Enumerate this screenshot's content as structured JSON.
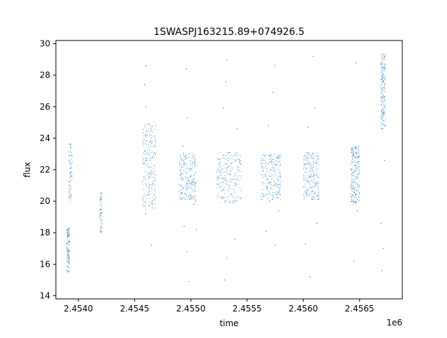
{
  "chart_data": {
    "type": "scatter",
    "title": "1SWASPJ163215.89+074926.5",
    "xlabel": "time",
    "ylabel": "flux",
    "x_offset_label": "1e6",
    "xlim": [
      2.4538,
      2.45688
    ],
    "ylim": [
      13.8,
      30.2
    ],
    "xticks": [
      2.454,
      2.4545,
      2.455,
      2.4555,
      2.456,
      2.4565
    ],
    "xtick_labels": [
      "2.4540",
      "2.4545",
      "2.4550",
      "2.4555",
      "2.4560",
      "2.4565"
    ],
    "yticks": [
      14,
      16,
      18,
      20,
      22,
      24,
      26,
      28,
      30
    ],
    "ytick_labels": [
      "14",
      "16",
      "18",
      "20",
      "22",
      "24",
      "26",
      "28",
      "30"
    ],
    "grid": false,
    "legend": "none",
    "marker_color": "#1f77b4",
    "series": [
      {
        "values": [
          {
            "x": 2.4539,
            "y": 15.6
          },
          {
            "x": 2.4539,
            "y": 16.2
          },
          {
            "x": 2.45391,
            "y": 16.8
          },
          {
            "x": 2.4539,
            "y": 17.3
          },
          {
            "x": 2.45391,
            "y": 17.8
          },
          {
            "x": 2.4539,
            "y": 18.2
          },
          {
            "x": 2.45392,
            "y": 20.3
          },
          {
            "x": 2.45392,
            "y": 21.2
          },
          {
            "x": 2.45393,
            "y": 22.1
          },
          {
            "x": 2.45392,
            "y": 22.9
          },
          {
            "x": 2.45393,
            "y": 23.6
          },
          {
            "x": 2.4542,
            "y": 18.1
          },
          {
            "x": 2.4542,
            "y": 19.5
          },
          {
            "x": 2.4542,
            "y": 20.5
          },
          {
            "x": 2.4546,
            "y": 19.2
          },
          {
            "x": 2.45462,
            "y": 20.4
          },
          {
            "x": 2.45463,
            "y": 21.5
          },
          {
            "x": 2.45461,
            "y": 22.6
          },
          {
            "x": 2.45464,
            "y": 23.8
          },
          {
            "x": 2.45462,
            "y": 24.9
          },
          {
            "x": 2.4546,
            "y": 26.0
          },
          {
            "x": 2.45459,
            "y": 27.4
          },
          {
            "x": 2.4546,
            "y": 28.6
          },
          {
            "x": 2.45465,
            "y": 17.2
          },
          {
            "x": 2.45466,
            "y": 20.0
          },
          {
            "x": 2.45466,
            "y": 22.8
          },
          {
            "x": 2.45495,
            "y": 20.1
          },
          {
            "x": 2.45497,
            "y": 21.1
          },
          {
            "x": 2.45499,
            "y": 22.0
          },
          {
            "x": 2.45496,
            "y": 22.9
          },
          {
            "x": 2.455,
            "y": 21.6
          },
          {
            "x": 2.45493,
            "y": 23.5
          },
          {
            "x": 2.45494,
            "y": 18.4
          },
          {
            "x": 2.45497,
            "y": 16.8
          },
          {
            "x": 2.45498,
            "y": 14.9
          },
          {
            "x": 2.45497,
            "y": 25.3
          },
          {
            "x": 2.45496,
            "y": 28.4
          },
          {
            "x": 2.45503,
            "y": 19.8
          },
          {
            "x": 2.45505,
            "y": 18.2
          },
          {
            "x": 2.45504,
            "y": 20.0
          },
          {
            "x": 2.45528,
            "y": 20.2
          },
          {
            "x": 2.45532,
            "y": 21.3
          },
          {
            "x": 2.45536,
            "y": 22.4
          },
          {
            "x": 2.4554,
            "y": 21.1
          },
          {
            "x": 2.45534,
            "y": 23.1
          },
          {
            "x": 2.45538,
            "y": 19.9
          },
          {
            "x": 2.4553,
            "y": 15.0
          },
          {
            "x": 2.45532,
            "y": 16.4
          },
          {
            "x": 2.45529,
            "y": 25.9
          },
          {
            "x": 2.45531,
            "y": 27.6
          },
          {
            "x": 2.45532,
            "y": 29.0
          },
          {
            "x": 2.45539,
            "y": 17.6
          },
          {
            "x": 2.45541,
            "y": 24.6
          },
          {
            "x": 2.45524,
            "y": 21.1
          },
          {
            "x": 2.45565,
            "y": 20.3
          },
          {
            "x": 2.45568,
            "y": 21.4
          },
          {
            "x": 2.45571,
            "y": 22.5
          },
          {
            "x": 2.45574,
            "y": 21.0
          },
          {
            "x": 2.45577,
            "y": 22.8
          },
          {
            "x": 2.4557,
            "y": 20.0
          },
          {
            "x": 2.45567,
            "y": 18.1
          },
          {
            "x": 2.45575,
            "y": 17.2
          },
          {
            "x": 2.45569,
            "y": 24.8
          },
          {
            "x": 2.45573,
            "y": 26.9
          },
          {
            "x": 2.45575,
            "y": 28.6
          },
          {
            "x": 2.45578,
            "y": 19.4
          },
          {
            "x": 2.45603,
            "y": 20.4
          },
          {
            "x": 2.45606,
            "y": 21.6
          },
          {
            "x": 2.45609,
            "y": 22.7
          },
          {
            "x": 2.45611,
            "y": 21.1
          },
          {
            "x": 2.45605,
            "y": 23.1
          },
          {
            "x": 2.45608,
            "y": 20.1
          },
          {
            "x": 2.45602,
            "y": 17.3
          },
          {
            "x": 2.45606,
            "y": 15.2
          },
          {
            "x": 2.45604,
            "y": 24.7
          },
          {
            "x": 2.4561,
            "y": 25.9
          },
          {
            "x": 2.45609,
            "y": 29.2
          },
          {
            "x": 2.45612,
            "y": 18.6
          },
          {
            "x": 2.45643,
            "y": 20.1
          },
          {
            "x": 2.45645,
            "y": 21.2
          },
          {
            "x": 2.45646,
            "y": 22.3
          },
          {
            "x": 2.45647,
            "y": 23.1
          },
          {
            "x": 2.45644,
            "y": 20.0
          },
          {
            "x": 2.45646,
            "y": 23.4
          },
          {
            "x": 2.45645,
            "y": 16.2
          },
          {
            "x": 2.45648,
            "y": 19.4
          },
          {
            "x": 2.45647,
            "y": 28.8
          },
          {
            "x": 2.4567,
            "y": 24.6
          },
          {
            "x": 2.45671,
            "y": 25.6
          },
          {
            "x": 2.45672,
            "y": 26.6
          },
          {
            "x": 2.45671,
            "y": 27.6
          },
          {
            "x": 2.45672,
            "y": 28.5
          },
          {
            "x": 2.45673,
            "y": 29.3
          },
          {
            "x": 2.4567,
            "y": 15.6
          },
          {
            "x": 2.45671,
            "y": 17.0
          },
          {
            "x": 2.45669,
            "y": 18.6
          },
          {
            "x": 2.45672,
            "y": 22.6
          }
        ],
        "clusters": [
          {
            "x_center": 2.45391,
            "x_width": 3e-05,
            "y_low": 15.5,
            "y_high": 18.3,
            "density": 0.5
          },
          {
            "x_center": 2.45393,
            "x_width": 3e-05,
            "y_low": 20.0,
            "y_high": 23.7,
            "density": 0.3
          },
          {
            "x_center": 2.4542,
            "x_width": 2e-05,
            "y_low": 18.0,
            "y_high": 20.6,
            "density": 0.25
          },
          {
            "x_center": 2.45463,
            "x_width": 0.00012,
            "y_low": 19.5,
            "y_high": 25.0,
            "density": 1.0
          },
          {
            "x_center": 2.45497,
            "x_width": 0.00015,
            "y_low": 20.1,
            "y_high": 23.1,
            "density": 1.0
          },
          {
            "x_center": 2.45534,
            "x_width": 0.00022,
            "y_low": 19.9,
            "y_high": 23.1,
            "density": 1.0
          },
          {
            "x_center": 2.45571,
            "x_width": 0.00018,
            "y_low": 20.1,
            "y_high": 23.0,
            "density": 1.0
          },
          {
            "x_center": 2.45607,
            "x_width": 0.00014,
            "y_low": 20.1,
            "y_high": 23.1,
            "density": 0.9
          },
          {
            "x_center": 2.45646,
            "x_width": 8e-05,
            "y_low": 19.8,
            "y_high": 23.5,
            "density": 1.0
          },
          {
            "x_center": 2.45671,
            "x_width": 4e-05,
            "y_low": 24.6,
            "y_high": 29.4,
            "density": 0.8
          }
        ]
      }
    ]
  }
}
